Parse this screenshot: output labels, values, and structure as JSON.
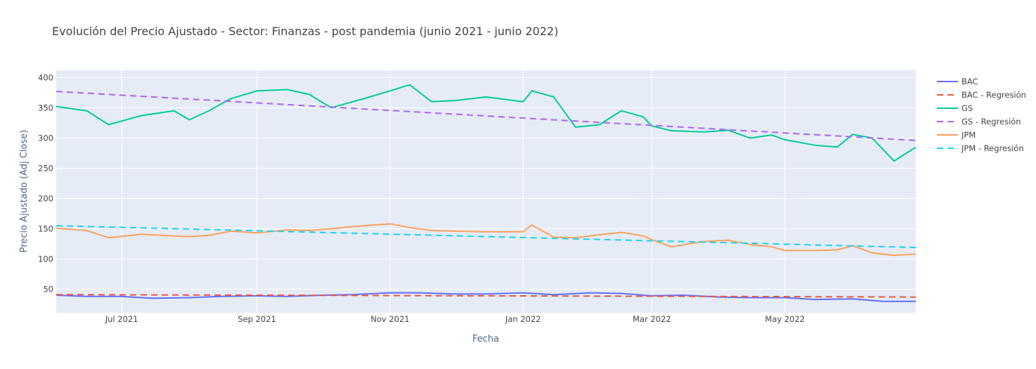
{
  "chart_data": {
    "type": "line",
    "title": "Evolución del Precio Ajustado - Sector: Finanzas - post pandemia (junio 2021 - junio 2022)",
    "xlabel": "Fecha",
    "ylabel": "Precio Ajustado (Adj Close)",
    "xlim": [
      "2021-06-01",
      "2022-06-30"
    ],
    "ylim": [
      11,
      412
    ],
    "x_ticks": [
      {
        "date": "2021-07-01",
        "label": "Jul 2021"
      },
      {
        "date": "2021-09-01",
        "label": "Sep 2021"
      },
      {
        "date": "2021-11-01",
        "label": "Nov 2021"
      },
      {
        "date": "2022-01-01",
        "label": "Jan 2022"
      },
      {
        "date": "2022-03-01",
        "label": "Mar 2022"
      },
      {
        "date": "2022-05-01",
        "label": "May 2022"
      }
    ],
    "y_ticks": [
      50,
      100,
      150,
      200,
      250,
      300,
      350,
      400
    ],
    "grid": true,
    "legend_position": "right",
    "colors": {
      "plot_bg": "#E5ECF6",
      "grid": "#ffffff",
      "BAC": "#636EFA",
      "BAC - Regresión": "#EF553B",
      "GS": "#00CC96",
      "GS - Regresión": "#AB63FA",
      "JPM": "#FFA15A",
      "JPM - Regresión": "#19D3F3"
    },
    "series": [
      {
        "name": "BAC",
        "dash": "solid",
        "x": [
          "2021-06-01",
          "2021-06-15",
          "2021-07-01",
          "2021-07-15",
          "2021-08-01",
          "2021-08-15",
          "2021-09-01",
          "2021-09-15",
          "2021-10-01",
          "2021-10-15",
          "2021-11-01",
          "2021-11-15",
          "2021-12-01",
          "2021-12-15",
          "2022-01-01",
          "2022-01-15",
          "2022-02-01",
          "2022-02-15",
          "2022-03-01",
          "2022-03-15",
          "2022-04-01",
          "2022-04-15",
          "2022-05-01",
          "2022-05-15",
          "2022-06-01",
          "2022-06-15",
          "2022-06-30"
        ],
        "y": [
          40,
          38,
          38,
          35,
          36,
          38,
          39,
          38,
          40,
          41,
          44,
          44,
          42,
          42,
          44,
          41,
          44,
          43,
          39,
          40,
          37,
          36,
          36,
          33,
          34,
          30,
          30
        ]
      },
      {
        "name": "BAC - Regresión",
        "dash": "dash",
        "x": [
          "2021-06-01",
          "2022-06-30"
        ],
        "y": [
          41,
          37
        ]
      },
      {
        "name": "GS",
        "dash": "solid",
        "x": [
          "2021-06-01",
          "2021-06-15",
          "2021-06-25",
          "2021-07-10",
          "2021-07-25",
          "2021-08-01",
          "2021-08-10",
          "2021-08-20",
          "2021-09-01",
          "2021-09-15",
          "2021-09-25",
          "2021-10-05",
          "2021-10-20",
          "2021-11-01",
          "2021-11-10",
          "2021-11-20",
          "2021-12-01",
          "2021-12-15",
          "2022-01-01",
          "2022-01-05",
          "2022-01-15",
          "2022-01-25",
          "2022-02-05",
          "2022-02-15",
          "2022-02-25",
          "2022-03-01",
          "2022-03-10",
          "2022-03-25",
          "2022-04-05",
          "2022-04-15",
          "2022-04-25",
          "2022-05-01",
          "2022-05-15",
          "2022-05-25",
          "2022-06-01",
          "2022-06-10",
          "2022-06-20",
          "2022-06-30"
        ],
        "y": [
          352,
          345,
          322,
          337,
          345,
          330,
          345,
          365,
          378,
          380,
          372,
          350,
          365,
          378,
          388,
          360,
          362,
          368,
          360,
          378,
          368,
          318,
          322,
          345,
          335,
          320,
          312,
          310,
          313,
          300,
          305,
          297,
          288,
          285,
          306,
          300,
          262,
          285
        ]
      },
      {
        "name": "GS - Regresión",
        "dash": "dash",
        "x": [
          "2021-06-01",
          "2022-06-30"
        ],
        "y": [
          377,
          296
        ]
      },
      {
        "name": "JPM",
        "dash": "solid",
        "x": [
          "2021-06-01",
          "2021-06-15",
          "2021-06-25",
          "2021-07-10",
          "2021-07-25",
          "2021-08-01",
          "2021-08-10",
          "2021-08-20",
          "2021-09-01",
          "2021-09-15",
          "2021-09-25",
          "2021-10-05",
          "2021-10-20",
          "2021-11-01",
          "2021-11-10",
          "2021-11-20",
          "2021-12-01",
          "2021-12-15",
          "2022-01-01",
          "2022-01-05",
          "2022-01-15",
          "2022-01-25",
          "2022-02-05",
          "2022-02-15",
          "2022-02-25",
          "2022-03-01",
          "2022-03-10",
          "2022-03-25",
          "2022-04-05",
          "2022-04-15",
          "2022-04-25",
          "2022-05-01",
          "2022-05-15",
          "2022-05-25",
          "2022-06-01",
          "2022-06-10",
          "2022-06-20",
          "2022-06-30"
        ],
        "y": [
          151,
          147,
          135,
          141,
          138,
          137,
          139,
          146,
          143,
          148,
          147,
          150,
          155,
          158,
          152,
          147,
          146,
          145,
          145,
          156,
          136,
          135,
          140,
          144,
          138,
          132,
          120,
          129,
          131,
          124,
          120,
          114,
          114,
          115,
          122,
          110,
          106,
          108
        ]
      },
      {
        "name": "JPM - Regresión",
        "dash": "dash",
        "x": [
          "2021-06-01",
          "2022-06-30"
        ],
        "y": [
          155,
          119
        ]
      }
    ]
  }
}
